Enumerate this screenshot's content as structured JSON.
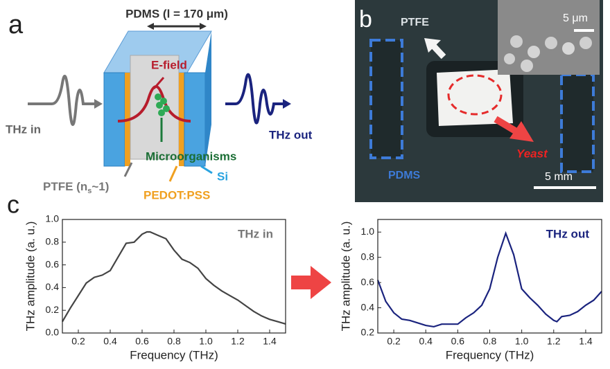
{
  "panel_labels": {
    "a": "a",
    "b": "b",
    "c": "c"
  },
  "diagram": {
    "pdms_label": "PDMS (l = 170 μm)",
    "e_field": "E-field",
    "thz_in": "THz in",
    "thz_out": "THz out",
    "microorganisms": "Microorganisms",
    "si": "Si",
    "ptfe": {
      "main": "PTFE (n",
      "sub": "s",
      "rest": "~1)"
    },
    "pedot": "PEDOT:PSS"
  },
  "photo": {
    "ptfe": "PTFE",
    "inset_scale": "5 μm",
    "pdms": "PDMS",
    "yeast": "Yeast",
    "scale": "5 mm"
  },
  "chart_data": [
    {
      "type": "line",
      "annotation": "THz in",
      "xlabel": "Frequency (THz)",
      "ylabel": "THz amplitude (a. u.)",
      "color": "#444444",
      "x": [
        0.1,
        0.15,
        0.2,
        0.25,
        0.3,
        0.35,
        0.4,
        0.45,
        0.5,
        0.55,
        0.6,
        0.63,
        0.65,
        0.7,
        0.75,
        0.8,
        0.85,
        0.9,
        0.95,
        1.0,
        1.05,
        1.1,
        1.15,
        1.2,
        1.25,
        1.3,
        1.35,
        1.4,
        1.45,
        1.5
      ],
      "values": [
        0.1,
        0.22,
        0.33,
        0.44,
        0.49,
        0.51,
        0.55,
        0.67,
        0.79,
        0.8,
        0.87,
        0.89,
        0.89,
        0.86,
        0.83,
        0.73,
        0.65,
        0.62,
        0.57,
        0.48,
        0.42,
        0.37,
        0.33,
        0.29,
        0.24,
        0.19,
        0.15,
        0.12,
        0.1,
        0.08
      ],
      "xlim": [
        0.1,
        1.5
      ],
      "xticks": [
        0.2,
        0.4,
        0.6,
        0.8,
        {
          "value": 1.0,
          "label": "1.0"
        },
        1.2,
        1.4
      ],
      "ylim": [
        0,
        1.0
      ],
      "yticks": [
        {
          "value": 0,
          "label": "0.0"
        },
        0.2,
        0.4,
        0.6,
        0.8,
        {
          "value": 1.0,
          "label": "1.0"
        }
      ]
    },
    {
      "type": "line",
      "annotation": "THz out",
      "xlabel": "Frequency (THz)",
      "ylabel": "THz amplitude (a. u.)",
      "color": "#1a237e",
      "x": [
        0.1,
        0.15,
        0.2,
        0.25,
        0.3,
        0.35,
        0.4,
        0.45,
        0.5,
        0.55,
        0.6,
        0.65,
        0.7,
        0.75,
        0.8,
        0.85,
        0.9,
        0.95,
        1.0,
        1.05,
        1.1,
        1.15,
        1.2,
        1.22,
        1.25,
        1.3,
        1.35,
        1.4,
        1.45,
        1.5
      ],
      "values": [
        0.62,
        0.45,
        0.36,
        0.31,
        0.3,
        0.28,
        0.26,
        0.25,
        0.27,
        0.27,
        0.27,
        0.32,
        0.36,
        0.42,
        0.55,
        0.8,
        0.99,
        0.82,
        0.55,
        0.48,
        0.42,
        0.35,
        0.3,
        0.29,
        0.33,
        0.34,
        0.37,
        0.42,
        0.46,
        0.53
      ],
      "xlim": [
        0.1,
        1.5
      ],
      "xticks": [
        0.2,
        0.4,
        0.6,
        0.8,
        {
          "value": 1.0,
          "label": "1.0"
        },
        1.2,
        1.4
      ],
      "ylim": [
        0.2,
        1.1
      ],
      "yticks": [
        0.2,
        0.4,
        0.6,
        0.8,
        {
          "value": 1.0,
          "label": "1.0"
        }
      ]
    }
  ]
}
